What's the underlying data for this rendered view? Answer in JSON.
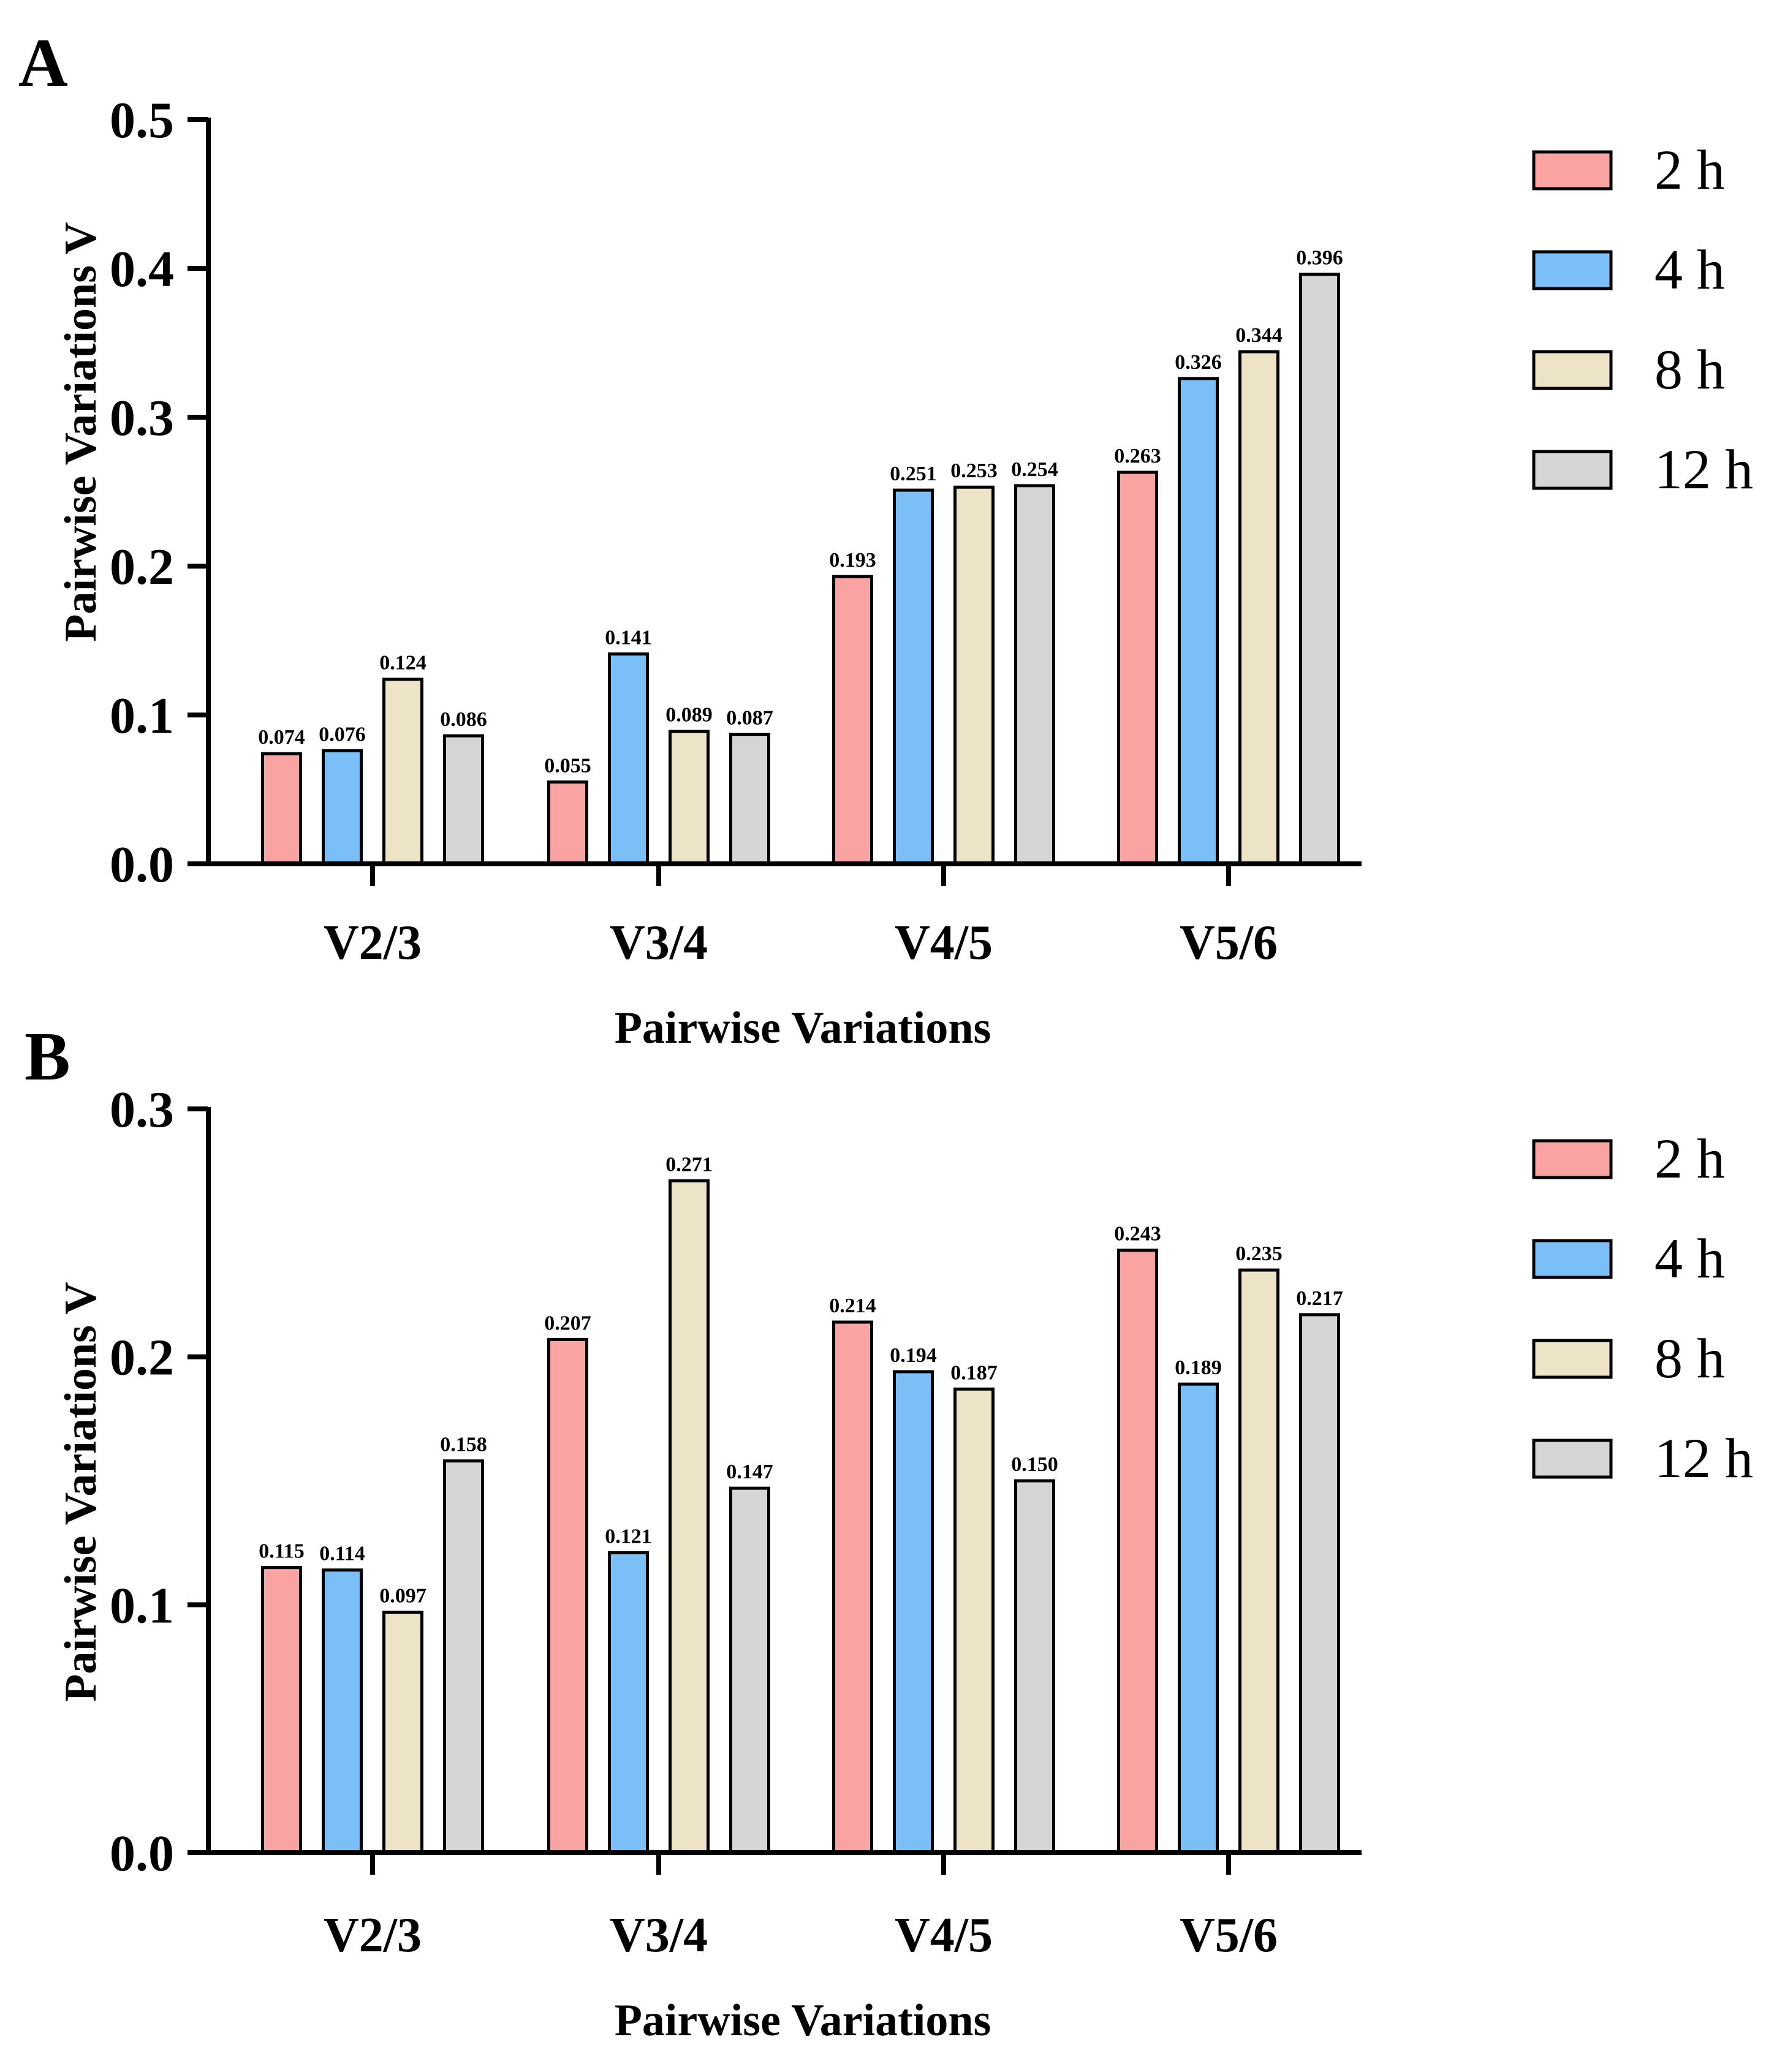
{
  "colors": {
    "2 h": "#F9A3A3",
    "4 h": "#7BBFF8",
    "8 h": "#EDE4C7",
    "12 h": "#D5D5D5",
    "stroke": "#000000"
  },
  "chart_data": [
    {
      "panel": "A",
      "type": "bar",
      "categories": [
        "V2/3",
        "V3/4",
        "V4/5",
        "V5/6"
      ],
      "series": [
        {
          "name": "2 h",
          "values": [
            0.074,
            0.055,
            0.193,
            0.263
          ],
          "labels": [
            "0.074",
            "0.055",
            "0.193",
            "0.263"
          ]
        },
        {
          "name": "4 h",
          "values": [
            0.076,
            0.141,
            0.251,
            0.326
          ],
          "labels": [
            "0.076",
            "0.141",
            "0.251",
            "0.326"
          ]
        },
        {
          "name": "8 h",
          "values": [
            0.124,
            0.089,
            0.253,
            0.344
          ],
          "labels": [
            "0.124",
            "0.089",
            "0.253",
            "0.344"
          ]
        },
        {
          "name": "12 h",
          "values": [
            0.086,
            0.087,
            0.254,
            0.396
          ],
          "labels": [
            "0.086",
            "0.087",
            "0.254",
            "0.396"
          ]
        }
      ],
      "xlabel": "Pairwise Variations",
      "ylabel": "Pairwise Variations V",
      "ylim": [
        0,
        0.5
      ],
      "yticks": [
        "0.0",
        "0.1",
        "0.2",
        "0.3",
        "0.4",
        "0.5"
      ],
      "legend": [
        "2 h",
        "4 h",
        "8 h",
        "12 h"
      ],
      "legend_position": "right",
      "grid": false
    },
    {
      "panel": "B",
      "type": "bar",
      "categories": [
        "V2/3",
        "V3/4",
        "V4/5",
        "V5/6"
      ],
      "series": [
        {
          "name": "2 h",
          "values": [
            0.115,
            0.207,
            0.214,
            0.243
          ],
          "labels": [
            "0.115",
            "0.207",
            "0.214",
            "0.243"
          ]
        },
        {
          "name": "4 h",
          "values": [
            0.114,
            0.121,
            0.194,
            0.189
          ],
          "labels": [
            "0.114",
            "0.121",
            "0.194",
            "0.189"
          ]
        },
        {
          "name": "8 h",
          "values": [
            0.097,
            0.271,
            0.187,
            0.235
          ],
          "labels": [
            "0.097",
            "0.271",
            "0.187",
            "0.235"
          ]
        },
        {
          "name": "12 h",
          "values": [
            0.158,
            0.147,
            0.15,
            0.217
          ],
          "labels": [
            "0.158",
            "0.147",
            "0.150",
            "0.217"
          ]
        }
      ],
      "xlabel": "Pairwise Variations",
      "ylabel": "Pairwise Variations V",
      "ylim": [
        0,
        0.3
      ],
      "yticks": [
        "0.0",
        "0.1",
        "0.2",
        "0.3"
      ],
      "legend": [
        "2 h",
        "4 h",
        "8 h",
        "12 h"
      ],
      "legend_position": "right",
      "grid": false
    }
  ]
}
